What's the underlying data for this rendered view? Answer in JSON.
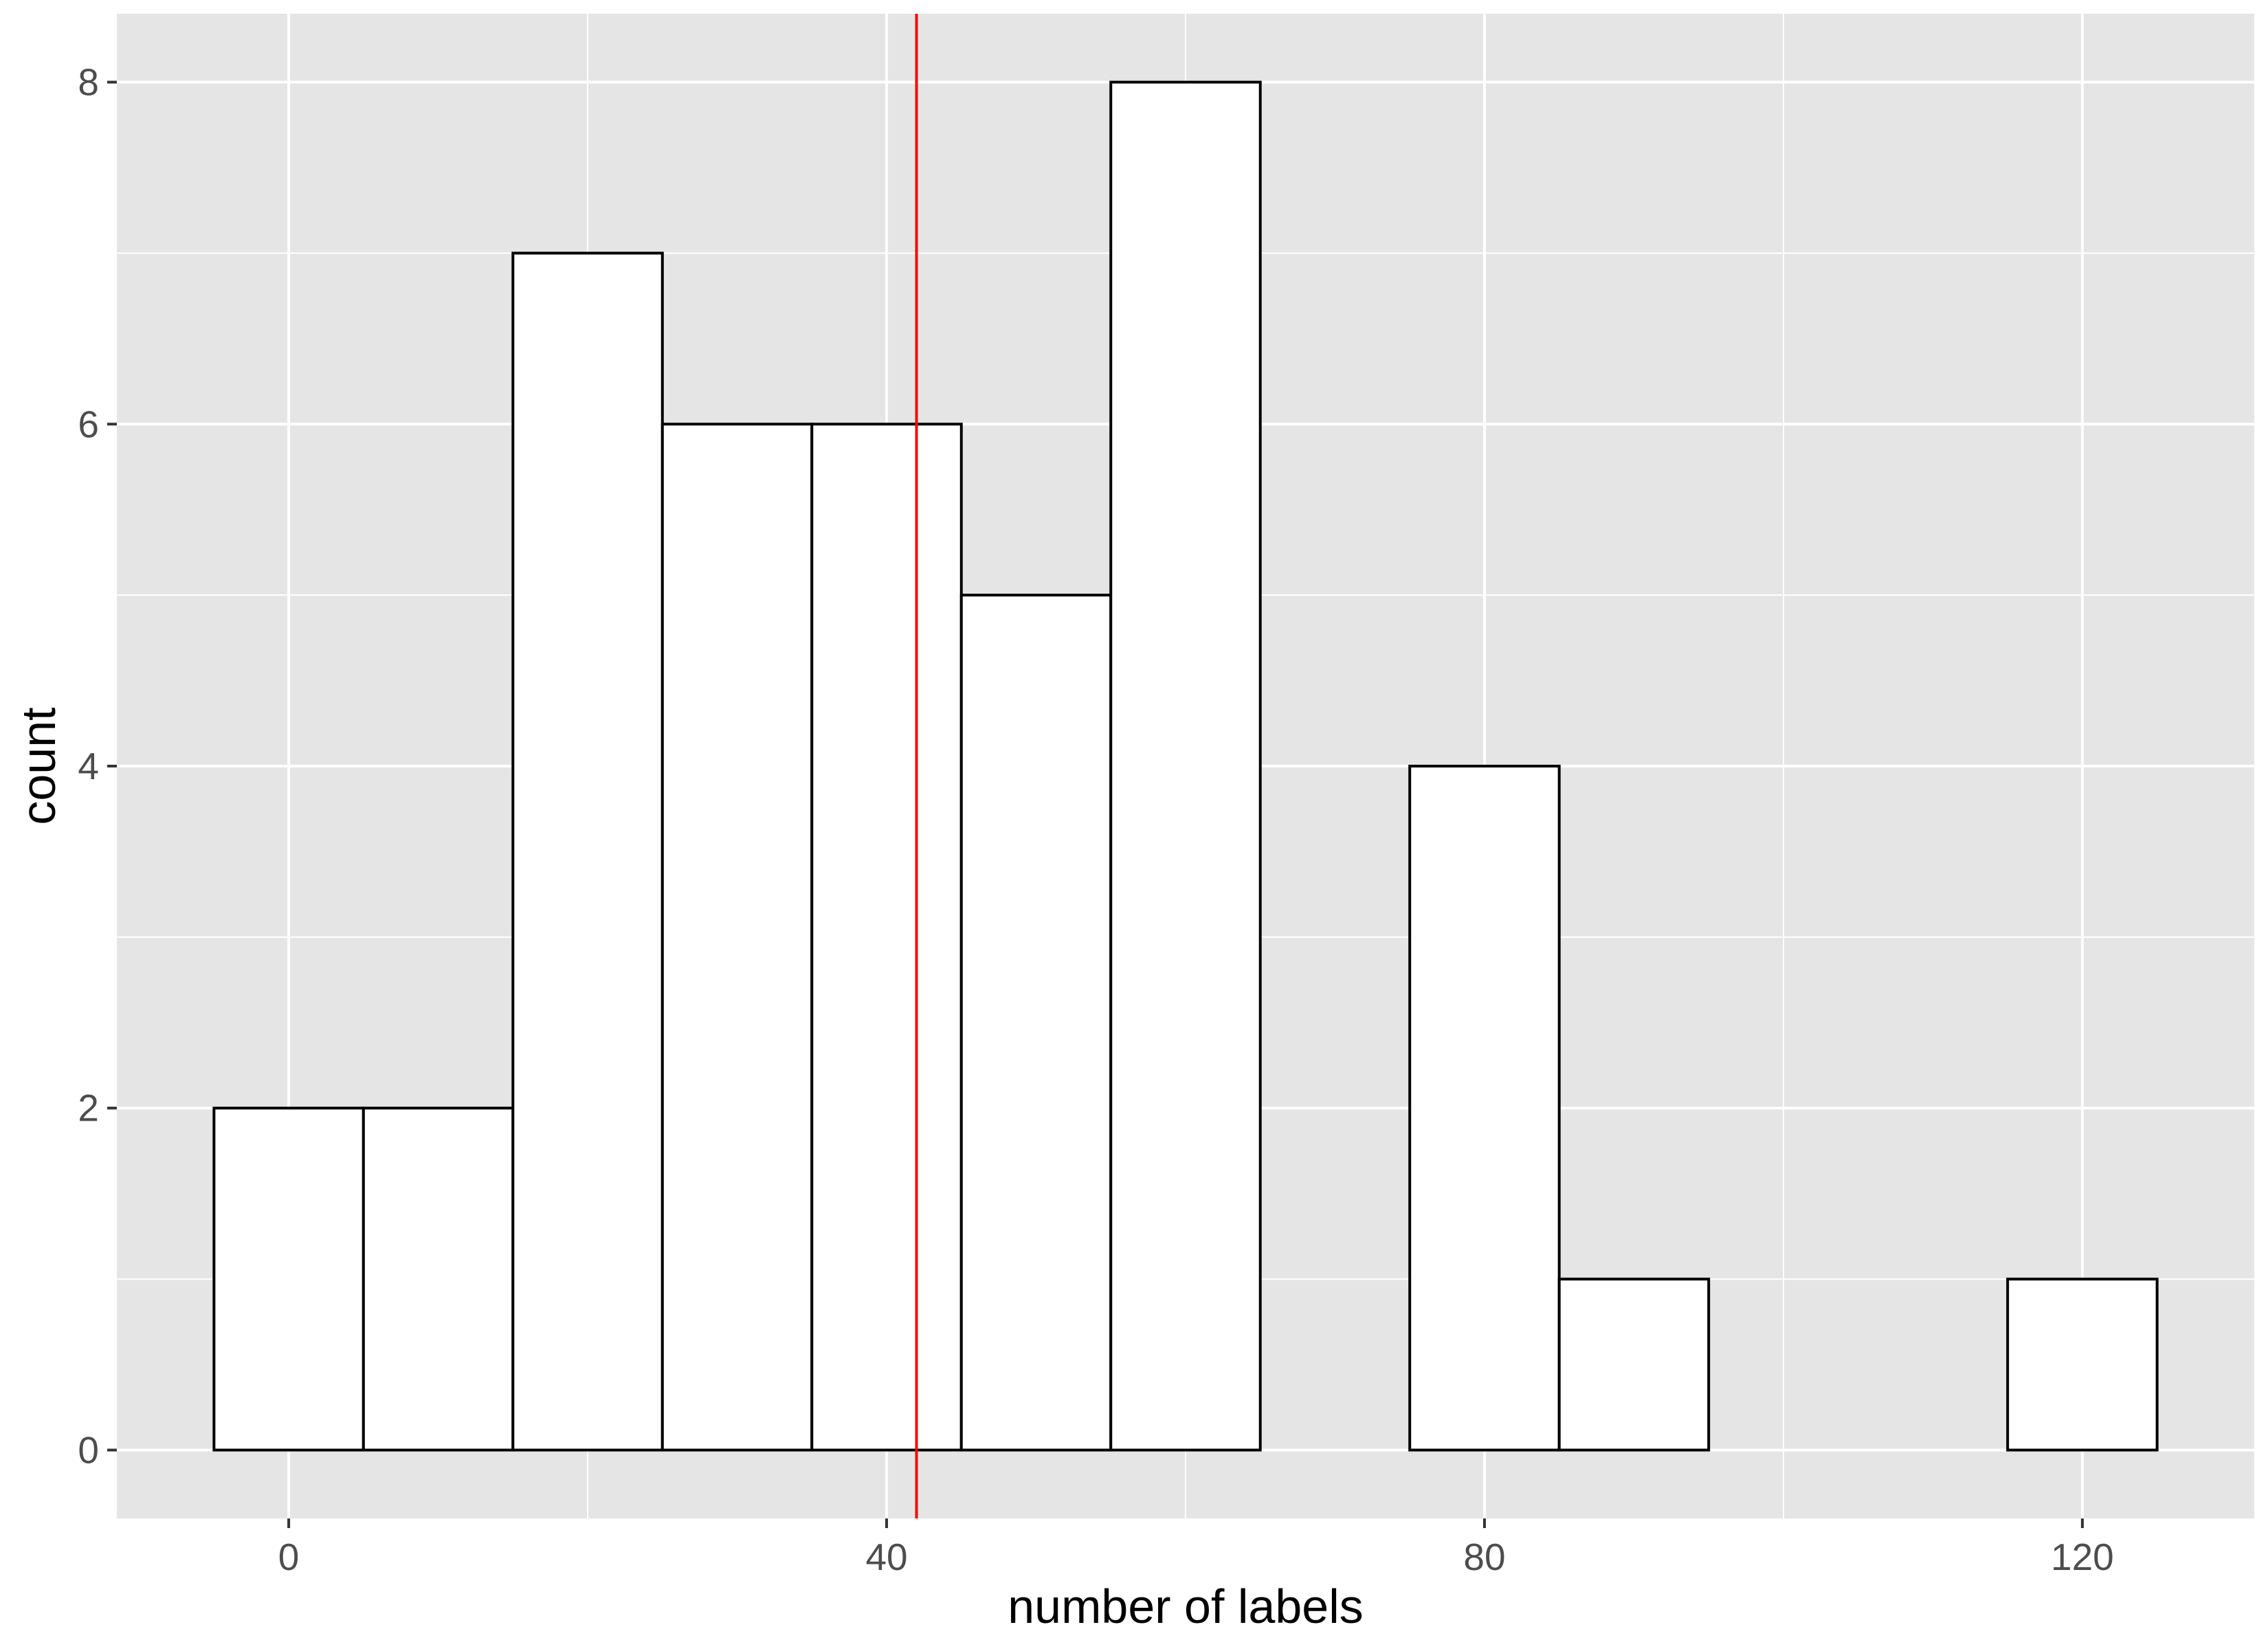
{
  "chart_data": {
    "type": "bar",
    "subtype": "histogram",
    "title": "",
    "xlabel": "number of labels",
    "ylabel": "count",
    "bin_width": 10,
    "bins": [
      {
        "center": 0,
        "count": 2
      },
      {
        "center": 10,
        "count": 2
      },
      {
        "center": 20,
        "count": 7
      },
      {
        "center": 30,
        "count": 6
      },
      {
        "center": 40,
        "count": 6
      },
      {
        "center": 50,
        "count": 5
      },
      {
        "center": 60,
        "count": 8
      },
      {
        "center": 70,
        "count": 0
      },
      {
        "center": 80,
        "count": 4
      },
      {
        "center": 90,
        "count": 1
      },
      {
        "center": 100,
        "count": 0
      },
      {
        "center": 110,
        "count": 0
      },
      {
        "center": 120,
        "count": 1
      }
    ],
    "reference_line": {
      "x": 42,
      "color": "#ff0000"
    },
    "xlim": [
      -11.5,
      131.5
    ],
    "ylim": [
      -0.4,
      8.4
    ],
    "x_ticks": [
      0,
      40,
      80,
      120
    ],
    "x_tick_labels": [
      "0",
      "40",
      "80",
      "120"
    ],
    "y_ticks": [
      0,
      2,
      4,
      6,
      8
    ],
    "y_tick_labels": [
      "0",
      "2",
      "4",
      "6",
      "8"
    ],
    "grid": true,
    "legend": false,
    "colors": {
      "panel_background": "#e5e5e5",
      "grid": "#ffffff",
      "bar_fill": "#ffffff",
      "bar_outline": "#000000",
      "reference_line": "#ff0000"
    }
  }
}
